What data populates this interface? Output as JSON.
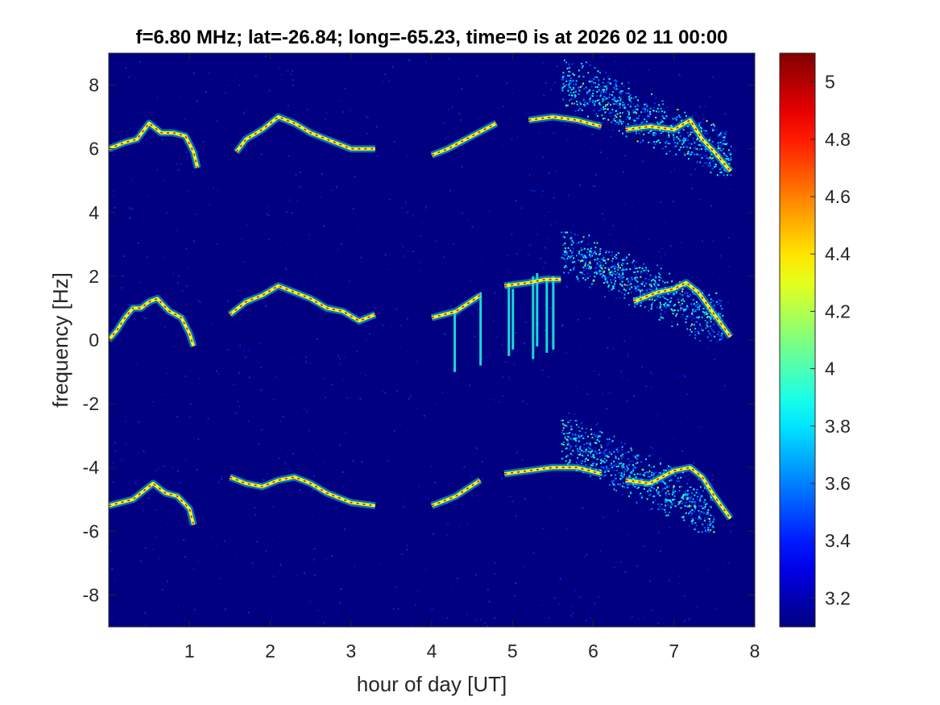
{
  "chart_data": [
    {
      "type": "heatmap",
      "title": "f=6.80 MHz;  lat=-26.84; long=-65.23, time=0 is at 2026 02 11 00:00",
      "xlabel": "hour of day [UT]",
      "ylabel": "frequency [Hz]",
      "xlim": [
        0,
        8
      ],
      "ylim": [
        -9,
        9
      ],
      "x_ticks": [
        1,
        2,
        3,
        4,
        5,
        6,
        7,
        8
      ],
      "y_ticks": [
        -8,
        -6,
        -4,
        -2,
        0,
        2,
        4,
        6,
        8
      ],
      "grid": false,
      "background_value": 3.1,
      "data_extent_hours": [
        0,
        7.7
      ],
      "data_gap_hours": [
        1.1,
        1.5
      ],
      "traces": [
        {
          "name": "",
          "points": [
            [
              0.0,
              6.0
            ],
            [
              0.2,
              6.2
            ],
            [
              0.35,
              6.3
            ],
            [
              0.5,
              6.8
            ],
            [
              0.65,
              6.5
            ],
            [
              0.8,
              6.5
            ],
            [
              0.95,
              6.4
            ],
            [
              1.05,
              5.9
            ],
            [
              1.1,
              5.4
            ],
            [
              1.58,
              5.9
            ],
            [
              1.7,
              6.3
            ],
            [
              1.9,
              6.6
            ],
            [
              2.1,
              7.0
            ],
            [
              2.3,
              6.8
            ],
            [
              2.5,
              6.5
            ],
            [
              2.7,
              6.3
            ],
            [
              3.0,
              6.0
            ],
            [
              3.3,
              6.0
            ],
            [
              3.6,
              5.9
            ],
            [
              4.0,
              5.8
            ],
            [
              4.2,
              6.0
            ],
            [
              4.5,
              6.4
            ],
            [
              4.8,
              6.8
            ],
            [
              5.2,
              6.9
            ],
            [
              5.5,
              7.0
            ],
            [
              5.8,
              6.9
            ],
            [
              6.1,
              6.7
            ],
            [
              6.4,
              6.6
            ],
            [
              6.7,
              6.7
            ],
            [
              7.0,
              6.6
            ],
            [
              7.2,
              6.9
            ],
            [
              7.35,
              6.3
            ],
            [
              7.5,
              5.9
            ],
            [
              7.7,
              5.3
            ]
          ]
        },
        {
          "name": "",
          "points": [
            [
              0.0,
              0.0
            ],
            [
              0.1,
              0.3
            ],
            [
              0.2,
              0.7
            ],
            [
              0.3,
              1.0
            ],
            [
              0.4,
              1.0
            ],
            [
              0.5,
              1.2
            ],
            [
              0.6,
              1.3
            ],
            [
              0.75,
              0.9
            ],
            [
              0.9,
              0.7
            ],
            [
              1.0,
              0.2
            ],
            [
              1.05,
              -0.2
            ],
            [
              1.5,
              0.8
            ],
            [
              1.7,
              1.2
            ],
            [
              1.9,
              1.4
            ],
            [
              2.1,
              1.7
            ],
            [
              2.3,
              1.5
            ],
            [
              2.5,
              1.3
            ],
            [
              2.7,
              1.0
            ],
            [
              2.9,
              0.9
            ],
            [
              3.1,
              0.6
            ],
            [
              3.3,
              0.8
            ],
            [
              3.6,
              0.9
            ],
            [
              4.0,
              0.7
            ],
            [
              4.3,
              0.9
            ],
            [
              4.6,
              1.4
            ],
            [
              4.9,
              1.7
            ],
            [
              5.2,
              1.8
            ],
            [
              5.4,
              1.9
            ],
            [
              5.6,
              1.9
            ],
            [
              6.1,
              1.5
            ],
            [
              6.5,
              1.2
            ],
            [
              6.8,
              1.5
            ],
            [
              7.0,
              1.6
            ],
            [
              7.15,
              1.8
            ],
            [
              7.3,
              1.5
            ],
            [
              7.5,
              0.8
            ],
            [
              7.7,
              0.1
            ]
          ]
        },
        {
          "name": "",
          "points": [
            [
              0.0,
              -5.2
            ],
            [
              0.15,
              -5.1
            ],
            [
              0.3,
              -5.0
            ],
            [
              0.45,
              -4.7
            ],
            [
              0.55,
              -4.5
            ],
            [
              0.7,
              -4.8
            ],
            [
              0.85,
              -4.9
            ],
            [
              1.0,
              -5.3
            ],
            [
              1.05,
              -5.8
            ],
            [
              1.5,
              -4.3
            ],
            [
              1.7,
              -4.5
            ],
            [
              1.9,
              -4.6
            ],
            [
              2.1,
              -4.4
            ],
            [
              2.3,
              -4.3
            ],
            [
              2.5,
              -4.5
            ],
            [
              2.7,
              -4.8
            ],
            [
              3.0,
              -5.1
            ],
            [
              3.3,
              -5.2
            ],
            [
              3.6,
              -5.1
            ],
            [
              4.0,
              -5.2
            ],
            [
              4.3,
              -4.9
            ],
            [
              4.6,
              -4.4
            ],
            [
              4.9,
              -4.2
            ],
            [
              5.2,
              -4.1
            ],
            [
              5.5,
              -4.0
            ],
            [
              5.8,
              -4.0
            ],
            [
              6.1,
              -4.2
            ],
            [
              6.4,
              -4.4
            ],
            [
              6.7,
              -4.5
            ],
            [
              7.0,
              -4.1
            ],
            [
              7.2,
              -4.0
            ],
            [
              7.35,
              -4.3
            ],
            [
              7.5,
              -4.9
            ],
            [
              7.7,
              -5.6
            ]
          ]
        }
      ],
      "diffuse_regions": [
        {
          "x": [
            5.6,
            7.7
          ],
          "y": [
            5.2,
            8.8
          ]
        },
        {
          "x": [
            5.6,
            7.6
          ],
          "y": [
            0.0,
            3.4
          ]
        },
        {
          "x": [
            5.6,
            7.5
          ],
          "y": [
            -6.0,
            -2.5
          ]
        }
      ],
      "vertical_streaks": [
        {
          "x": 4.28,
          "y": [
            -1.0,
            0.9
          ]
        },
        {
          "x": 4.6,
          "y": [
            -0.8,
            1.5
          ]
        },
        {
          "x": 4.95,
          "y": [
            -0.5,
            1.8
          ]
        },
        {
          "x": 5.0,
          "y": [
            -0.3,
            1.6
          ]
        },
        {
          "x": 5.25,
          "y": [
            -0.6,
            2.0
          ]
        },
        {
          "x": 5.3,
          "y": [
            -0.2,
            2.1
          ]
        },
        {
          "x": 5.42,
          "y": [
            -0.4,
            1.9
          ]
        },
        {
          "x": 5.5,
          "y": [
            -0.3,
            2.0
          ]
        }
      ],
      "colorbar": {
        "colormap": "jet",
        "range": [
          3.1,
          5.1
        ],
        "ticks": [
          3.2,
          3.4,
          3.6,
          3.8,
          4,
          4.2,
          4.4,
          4.6,
          4.8,
          5
        ],
        "label": ""
      }
    }
  ],
  "colors": {
    "background": "#ffffff",
    "text": "#262626",
    "title": "#000000",
    "axis": "#262626"
  }
}
